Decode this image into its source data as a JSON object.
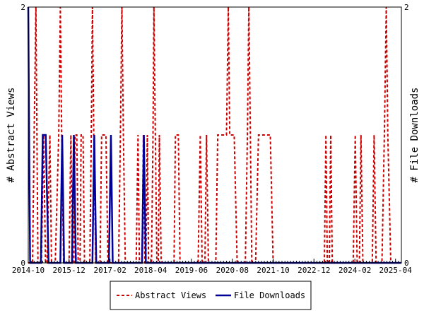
{
  "chart_data": {
    "type": "line",
    "title": "",
    "x_axis": {
      "type": "date",
      "range": [
        "2014-10",
        "2025-06"
      ],
      "tick_labels": [
        "2014-10",
        "2015-12",
        "2017-02",
        "2018-04",
        "2019-06",
        "2020-08",
        "2021-10",
        "2022-12",
        "2024-02",
        "2025-04"
      ]
    },
    "y_left": {
      "label": "# Abstract Views",
      "range": [
        0,
        2
      ],
      "tick_labels": [
        "0",
        "2"
      ]
    },
    "y_right": {
      "label": "# File Downloads",
      "range": [
        0,
        2
      ],
      "tick_labels": [
        "0",
        "2"
      ]
    },
    "grid": false,
    "legend": {
      "position": "bottom-center",
      "entries": [
        "Abstract Views",
        "File Downloads"
      ]
    },
    "series": [
      {
        "name": "Abstract Views",
        "axis": "left",
        "color": "#cc0000",
        "style": "dashed",
        "points": [
          [
            "2014-10-01",
            0
          ],
          [
            "2014-11-15",
            0
          ],
          [
            "2014-12-01",
            1
          ],
          [
            "2014-12-20",
            2
          ],
          [
            "2015-01-10",
            0
          ],
          [
            "2015-02-15",
            0
          ],
          [
            "2015-03-10",
            1
          ],
          [
            "2015-03-30",
            0
          ],
          [
            "2015-04-15",
            0
          ],
          [
            "2015-05-15",
            1
          ],
          [
            "2015-06-01",
            0
          ],
          [
            "2015-07-10",
            0
          ],
          [
            "2015-08-15",
            1
          ],
          [
            "2015-09-01",
            2
          ],
          [
            "2015-09-15",
            1
          ],
          [
            "2015-10-05",
            0
          ],
          [
            "2015-12-01",
            0
          ],
          [
            "2015-12-20",
            1
          ],
          [
            "2016-01-05",
            0
          ],
          [
            "2016-01-20",
            0
          ],
          [
            "2016-02-01",
            1
          ],
          [
            "2016-02-20",
            1
          ],
          [
            "2016-03-05",
            0
          ],
          [
            "2016-03-25",
            0
          ],
          [
            "2016-04-05",
            1
          ],
          [
            "2016-04-25",
            1
          ],
          [
            "2016-05-10",
            0
          ],
          [
            "2016-07-05",
            0
          ],
          [
            "2016-07-20",
            1
          ],
          [
            "2016-08-01",
            2
          ],
          [
            "2016-08-15",
            1
          ],
          [
            "2016-09-05",
            0
          ],
          [
            "2016-10-20",
            0
          ],
          [
            "2016-11-05",
            1
          ],
          [
            "2016-12-20",
            1
          ],
          [
            "2017-01-10",
            0
          ],
          [
            "2017-05-01",
            0
          ],
          [
            "2017-05-20",
            1
          ],
          [
            "2017-06-05",
            2
          ],
          [
            "2017-06-20",
            1
          ],
          [
            "2017-07-10",
            0
          ],
          [
            "2017-11-01",
            0
          ],
          [
            "2017-11-20",
            1
          ],
          [
            "2017-12-05",
            0
          ],
          [
            "2018-01-01",
            0
          ],
          [
            "2018-01-15",
            1
          ],
          [
            "2018-01-30",
            0
          ],
          [
            "2018-02-10",
            0
          ],
          [
            "2018-02-25",
            1
          ],
          [
            "2018-03-10",
            0
          ],
          [
            "2018-04-10",
            0
          ],
          [
            "2018-04-25",
            1
          ],
          [
            "2018-05-05",
            2
          ],
          [
            "2018-05-20",
            1
          ],
          [
            "2018-06-05",
            0
          ],
          [
            "2018-06-20",
            0
          ],
          [
            "2018-07-01",
            1
          ],
          [
            "2018-07-20",
            0
          ],
          [
            "2018-12-01",
            0
          ],
          [
            "2018-12-15",
            1
          ],
          [
            "2019-01-15",
            1
          ],
          [
            "2019-02-01",
            0
          ],
          [
            "2019-08-10",
            0
          ],
          [
            "2019-09-01",
            1
          ],
          [
            "2019-09-20",
            0
          ],
          [
            "2019-10-20",
            0
          ],
          [
            "2019-11-05",
            1
          ],
          [
            "2019-11-25",
            0
          ],
          [
            "2020-02-10",
            0
          ],
          [
            "2020-03-01",
            1
          ],
          [
            "2020-06-01",
            1
          ],
          [
            "2020-06-20",
            2
          ],
          [
            "2020-07-05",
            1
          ],
          [
            "2020-08-20",
            1
          ],
          [
            "2020-09-20",
            0
          ],
          [
            "2020-12-15",
            0
          ],
          [
            "2021-01-05",
            1
          ],
          [
            "2021-01-20",
            2
          ],
          [
            "2021-02-05",
            1
          ],
          [
            "2021-02-20",
            0
          ],
          [
            "2021-04-01",
            0
          ],
          [
            "2021-05-01",
            1
          ],
          [
            "2021-09-01",
            1
          ],
          [
            "2021-10-01",
            0
          ],
          [
            "2023-03-20",
            0
          ],
          [
            "2023-04-05",
            1
          ],
          [
            "2023-04-20",
            0
          ],
          [
            "2023-05-10",
            0
          ],
          [
            "2023-05-25",
            1
          ],
          [
            "2023-06-10",
            0
          ],
          [
            "2024-01-15",
            0
          ],
          [
            "2024-02-05",
            1
          ],
          [
            "2024-02-25",
            0
          ],
          [
            "2024-03-20",
            0
          ],
          [
            "2024-04-05",
            1
          ],
          [
            "2024-04-25",
            0
          ],
          [
            "2024-08-01",
            0
          ],
          [
            "2024-08-20",
            1
          ],
          [
            "2024-09-10",
            0
          ],
          [
            "2024-11-10",
            0
          ],
          [
            "2024-12-05",
            1
          ],
          [
            "2024-12-25",
            2
          ],
          [
            "2025-01-10",
            1
          ],
          [
            "2025-02-10",
            0
          ],
          [
            "2025-06-01",
            0
          ]
        ]
      },
      {
        "name": "File Downloads",
        "axis": "right",
        "color": "#000099",
        "style": "solid",
        "points": [
          [
            "2014-10-01",
            2
          ],
          [
            "2014-10-10",
            1
          ],
          [
            "2014-10-20",
            0
          ],
          [
            "2015-02-10",
            0
          ],
          [
            "2015-03-01",
            1
          ],
          [
            "2015-04-01",
            1
          ],
          [
            "2015-05-01",
            0
          ],
          [
            "2015-09-01",
            0
          ],
          [
            "2015-09-20",
            1
          ],
          [
            "2015-10-10",
            0
          ],
          [
            "2016-01-01",
            0
          ],
          [
            "2016-01-20",
            1
          ],
          [
            "2016-02-10",
            0
          ],
          [
            "2016-08-01",
            0
          ],
          [
            "2016-08-20",
            1
          ],
          [
            "2016-09-10",
            0
          ],
          [
            "2017-01-20",
            0
          ],
          [
            "2017-02-10",
            1
          ],
          [
            "2017-03-01",
            0
          ],
          [
            "2018-01-01",
            0
          ],
          [
            "2018-01-20",
            1
          ],
          [
            "2018-02-10",
            0
          ],
          [
            "2025-06-01",
            0
          ]
        ]
      }
    ]
  }
}
